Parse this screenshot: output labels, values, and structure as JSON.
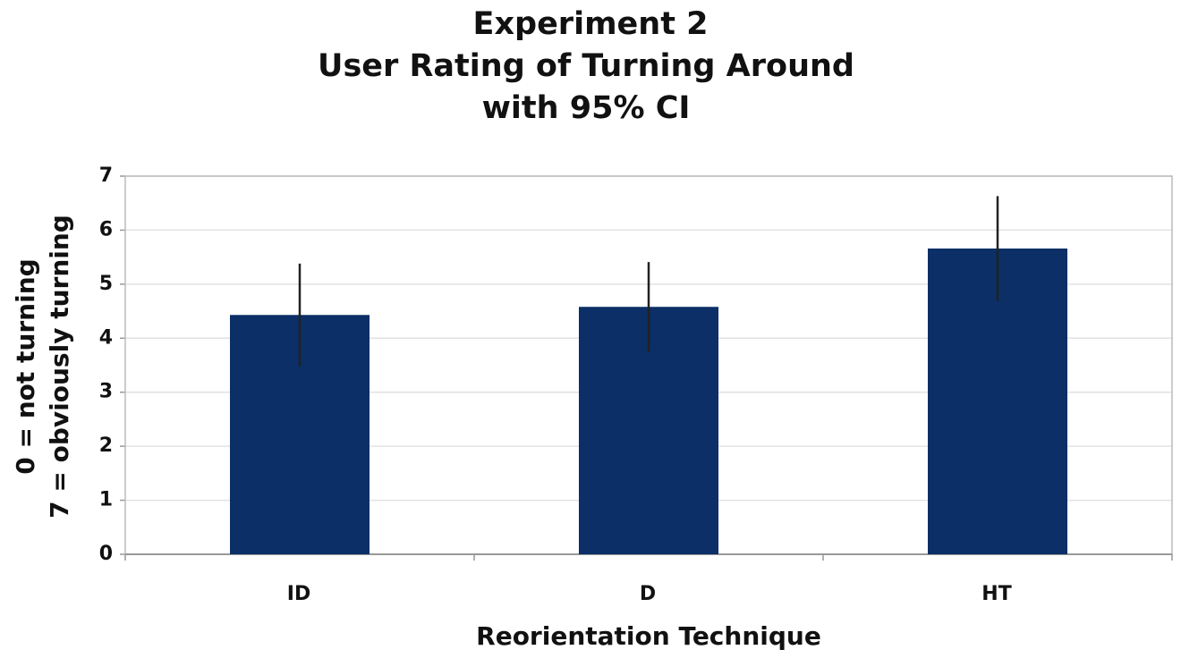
{
  "chart_data": {
    "type": "bar",
    "title": [
      "Experiment 2",
      "User Rating of Turning Around",
      "with 95% CI"
    ],
    "ylabel": [
      "0 = not turning",
      "7 = obviously turning"
    ],
    "xlabel": "Reorientation Technique",
    "categories": [
      "ID",
      "D",
      "HT"
    ],
    "values": [
      4.43,
      4.58,
      5.66
    ],
    "errors": [
      0.95,
      0.83,
      0.97
    ],
    "color": "#0b2f66",
    "ylim": [
      0,
      7
    ],
    "yticks": [
      0,
      1,
      2,
      3,
      4,
      5,
      6,
      7
    ],
    "grid": true
  }
}
